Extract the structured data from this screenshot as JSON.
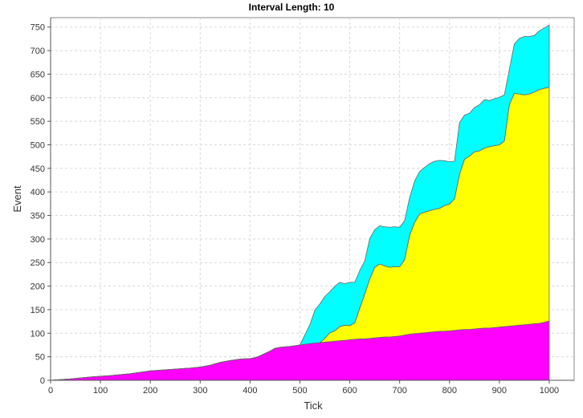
{
  "chart_data": {
    "type": "area",
    "stacked": true,
    "title": "Interval Length: 10",
    "xlabel": "Tick",
    "ylabel": "Event",
    "xlim": [
      0,
      1050
    ],
    "ylim": [
      0,
      770
    ],
    "xticks": [
      0,
      100,
      200,
      300,
      400,
      500,
      600,
      700,
      800,
      900,
      1000
    ],
    "yticks": [
      0,
      50,
      100,
      150,
      200,
      250,
      300,
      350,
      400,
      450,
      500,
      550,
      600,
      650,
      700,
      750
    ],
    "grid": true,
    "legend": "none",
    "x": [
      0,
      40,
      80,
      120,
      160,
      200,
      240,
      280,
      300,
      320,
      340,
      360,
      380,
      400,
      410,
      420,
      440,
      450,
      460,
      480,
      500,
      520,
      530,
      540,
      550,
      560,
      570,
      580,
      590,
      600,
      610,
      620,
      630,
      640,
      650,
      660,
      670,
      680,
      690,
      700,
      710,
      720,
      730,
      740,
      750,
      760,
      770,
      780,
      790,
      800,
      810,
      820,
      830,
      840,
      850,
      860,
      870,
      880,
      890,
      900,
      910,
      920,
      930,
      940,
      950,
      960,
      970,
      980,
      990,
      1000
    ],
    "series": [
      {
        "color": "#ff00ff",
        "values": [
          0,
          3,
          7,
          10,
          14,
          20,
          23,
          26,
          28,
          32,
          38,
          42,
          45,
          46,
          48,
          52,
          62,
          68,
          70,
          72,
          75,
          78,
          79,
          80,
          81,
          82,
          83,
          84,
          85,
          86,
          87,
          88,
          88,
          89,
          90,
          91,
          92,
          92,
          93,
          94,
          96,
          98,
          99,
          100,
          101,
          102,
          103,
          104,
          104,
          105,
          106,
          107,
          108,
          108,
          109,
          110,
          111,
          111,
          112,
          113,
          114,
          115,
          116,
          117,
          118,
          119,
          120,
          121,
          123,
          126
        ]
      },
      {
        "color": "#ffff00",
        "values": [
          0,
          0,
          0,
          0,
          0,
          0,
          0,
          0,
          0,
          0,
          0,
          0,
          0,
          0,
          0,
          0,
          0,
          0,
          0,
          0,
          0,
          0,
          0,
          0,
          8,
          19,
          22,
          30,
          32,
          30,
          35,
          65,
          95,
          126,
          150,
          156,
          151,
          148,
          148,
          147,
          160,
          210,
          236,
          253,
          256,
          258,
          260,
          261,
          267,
          269,
          279,
          330,
          361,
          368,
          376,
          377,
          382,
          385,
          386,
          387,
          394,
          470,
          493,
          491,
          488,
          489,
          492,
          496,
          497,
          496
        ]
      },
      {
        "color": "#00ffff",
        "values": [
          0,
          0,
          0,
          0,
          0,
          0,
          0,
          0,
          0,
          0,
          0,
          0,
          0,
          0,
          0,
          0,
          0,
          0,
          0,
          0,
          0,
          40,
          70,
          82,
          89,
          87,
          95,
          94,
          88,
          92,
          86,
          80,
          70,
          86,
          80,
          81,
          83,
          85,
          85,
          84,
          83,
          80,
          88,
          90,
          95,
          100,
          102,
          102,
          95,
          90,
          80,
          110,
          94,
          91,
          94,
          98,
          103,
          98,
          100,
          101,
          98,
          75,
          105,
          118,
          124,
          122,
          120,
          125,
          128,
          132
        ]
      }
    ]
  }
}
